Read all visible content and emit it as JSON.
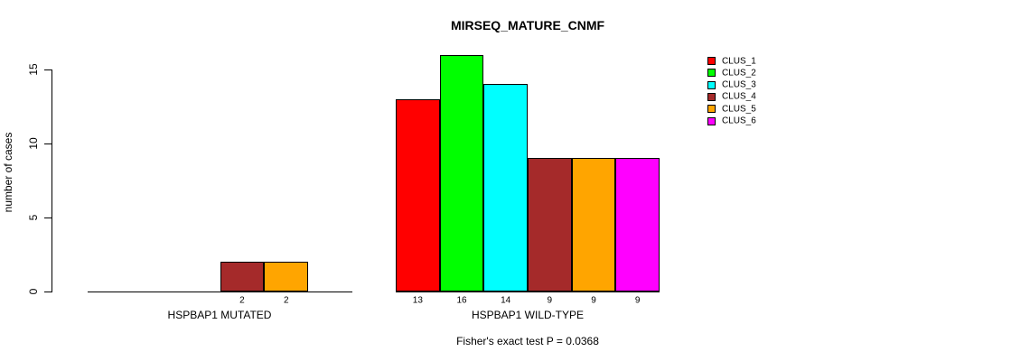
{
  "chart_data": {
    "type": "bar",
    "title": "MIRSEQ_MATURE_CNMF",
    "ylabel": "number of cases",
    "xlabel": "",
    "yticks": [
      0,
      5,
      10,
      15
    ],
    "ylim": [
      0,
      16.5
    ],
    "grid": false,
    "legend_position": "right",
    "series": [
      {
        "name": "CLUS_1",
        "color": "#FF0000"
      },
      {
        "name": "CLUS_2",
        "color": "#00FF00"
      },
      {
        "name": "CLUS_3",
        "color": "#00FFFF"
      },
      {
        "name": "CLUS_4",
        "color": "#A52A2A"
      },
      {
        "name": "CLUS_5",
        "color": "#FFA500"
      },
      {
        "name": "CLUS_6",
        "color": "#FF00FF"
      }
    ],
    "groups": [
      {
        "label": "HSPBAP1 MUTATED",
        "values": [
          0,
          0,
          0,
          2,
          2,
          0
        ],
        "bar_labels": [
          "",
          "",
          "",
          "2",
          "2",
          ""
        ]
      },
      {
        "label": "HSPBAP1 WILD-TYPE",
        "values": [
          13,
          16,
          14,
          9,
          9,
          9
        ],
        "bar_labels": [
          "13",
          "16",
          "14",
          "9",
          "9",
          "9"
        ]
      }
    ],
    "footnote": "Fisher's exact test P = 0.0368",
    "axis_color": "#000000",
    "bar_border_color": "#000000",
    "background_color": "#FFFFFF"
  }
}
